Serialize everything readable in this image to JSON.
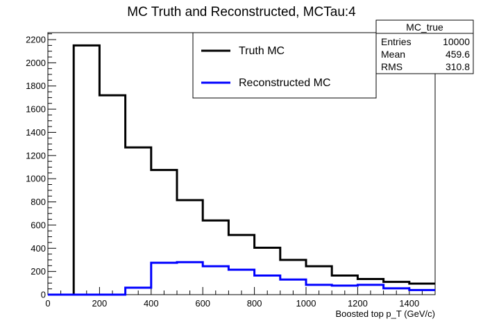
{
  "chart_data": {
    "type": "line",
    "title": "MC Truth and Reconstructed, MCTau:4",
    "xlabel": "Boosted top p_T (GeV/c)",
    "ylabel": "",
    "xlim": [
      0,
      1500
    ],
    "ylim": [
      0,
      2260
    ],
    "x_ticks": [
      "0",
      "200",
      "400",
      "600",
      "800",
      "1000",
      "1200",
      "1400"
    ],
    "y_ticks": [
      "0",
      "200",
      "400",
      "600",
      "800",
      "1000",
      "1200",
      "1400",
      "1600",
      "1800",
      "2000",
      "2200"
    ],
    "bin_edges": [
      0,
      100,
      200,
      300,
      400,
      500,
      600,
      700,
      800,
      900,
      1000,
      1100,
      1200,
      1300,
      1400,
      1500
    ],
    "series": [
      {
        "name": "Truth MC",
        "color": "#000000",
        "values": [
          0,
          2150,
          1720,
          1270,
          1075,
          815,
          640,
          515,
          405,
          300,
          245,
          165,
          135,
          110,
          95
        ]
      },
      {
        "name": "Reconstructed MC",
        "color": "#0000ff",
        "values": [
          0,
          0,
          0,
          60,
          275,
          280,
          245,
          215,
          165,
          130,
          85,
          78,
          85,
          55,
          40
        ]
      }
    ],
    "legend": {
      "placement": "top-center",
      "entries": [
        "Truth MC",
        "Reconstructed MC"
      ]
    },
    "stats_box": {
      "title": "MC_true",
      "rows": [
        {
          "label": "Entries",
          "value": "10000"
        },
        {
          "label": "Mean",
          "value": "459.6"
        },
        {
          "label": "RMS",
          "value": "310.8"
        }
      ]
    },
    "grid": false
  }
}
